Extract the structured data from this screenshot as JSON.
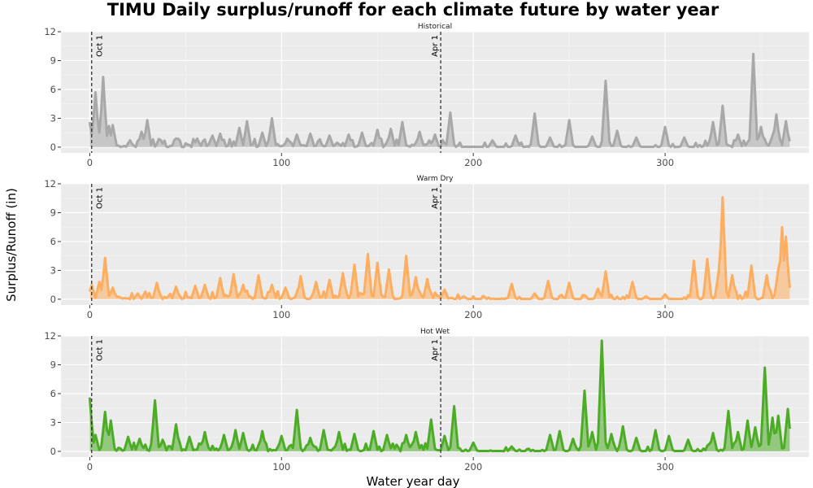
{
  "chart_data": {
    "type": "line",
    "title": "TIMU Daily surplus/runoff for each climate future by water year",
    "xlabel": "Water year day",
    "ylabel": "Surplus/Runoff (in)",
    "xlim": [
      -15,
      375
    ],
    "ylim": [
      -0.6,
      12
    ],
    "x_ticks": [
      0,
      100,
      200,
      300
    ],
    "y_ticks": [
      0,
      3,
      6,
      9,
      12
    ],
    "grid": true,
    "reference_lines": [
      {
        "x": 1,
        "label": "Oct 1"
      },
      {
        "x": 183,
        "label": "Apr 1"
      }
    ],
    "panels": [
      {
        "name": "Historical",
        "color": "#a8a8a8",
        "peaks": [
          [
            0,
            2.6
          ],
          [
            3,
            5.7
          ],
          [
            5,
            1.5
          ],
          [
            7,
            7.3
          ],
          [
            10,
            2.2
          ],
          [
            12,
            2.3
          ],
          [
            27,
            1.6
          ],
          [
            30,
            2.8
          ],
          [
            56,
            0.9
          ],
          [
            64,
            1.2
          ],
          [
            68,
            1.4
          ],
          [
            78,
            2.0
          ],
          [
            82,
            2.7
          ],
          [
            90,
            1.5
          ],
          [
            95,
            3.0
          ],
          [
            108,
            1.3
          ],
          [
            115,
            1.4
          ],
          [
            125,
            1.2
          ],
          [
            135,
            1.3
          ],
          [
            142,
            1.5
          ],
          [
            150,
            1.8
          ],
          [
            157,
            1.9
          ],
          [
            163,
            2.6
          ],
          [
            172,
            1.6
          ],
          [
            180,
            1.3
          ],
          [
            188,
            3.6
          ],
          [
            210,
            0.7
          ],
          [
            222,
            1.2
          ],
          [
            232,
            3.5
          ],
          [
            240,
            1.0
          ],
          [
            250,
            2.8
          ],
          [
            262,
            1.1
          ],
          [
            269,
            6.9
          ],
          [
            275,
            1.7
          ],
          [
            285,
            1.0
          ],
          [
            300,
            2.1
          ],
          [
            310,
            1.0
          ],
          [
            325,
            2.6
          ],
          [
            330,
            4.3
          ],
          [
            338,
            1.3
          ],
          [
            346,
            9.7
          ],
          [
            350,
            2.1
          ],
          [
            356,
            1.2
          ],
          [
            358,
            3.4
          ],
          [
            363,
            2.7
          ]
        ]
      },
      {
        "name": "Warm Dry",
        "color": "#fdae61",
        "peaks": [
          [
            1,
            1.5
          ],
          [
            5,
            1.8
          ],
          [
            8,
            4.3
          ],
          [
            12,
            1.2
          ],
          [
            25,
            0.6
          ],
          [
            35,
            1.7
          ],
          [
            45,
            1.3
          ],
          [
            55,
            1.4
          ],
          [
            60,
            1.5
          ],
          [
            68,
            2.2
          ],
          [
            75,
            2.6
          ],
          [
            80,
            1.5
          ],
          [
            88,
            2.5
          ],
          [
            95,
            1.5
          ],
          [
            102,
            1.2
          ],
          [
            110,
            2.4
          ],
          [
            118,
            1.8
          ],
          [
            125,
            2.0
          ],
          [
            132,
            2.7
          ],
          [
            138,
            3.6
          ],
          [
            145,
            4.7
          ],
          [
            150,
            3.8
          ],
          [
            156,
            3.1
          ],
          [
            165,
            4.5
          ],
          [
            170,
            2.3
          ],
          [
            176,
            2.1
          ],
          [
            185,
            1.0
          ],
          [
            195,
            0.3
          ],
          [
            220,
            1.6
          ],
          [
            232,
            0.6
          ],
          [
            239,
            1.9
          ],
          [
            250,
            1.7
          ],
          [
            265,
            1.1
          ],
          [
            269,
            2.9
          ],
          [
            283,
            1.8
          ],
          [
            290,
            0.3
          ],
          [
            300,
            0.5
          ],
          [
            315,
            4.0
          ],
          [
            322,
            4.2
          ],
          [
            328,
            3.0
          ],
          [
            330,
            10.6
          ],
          [
            335,
            2.5
          ],
          [
            345,
            3.5
          ],
          [
            353,
            2.5
          ],
          [
            359,
            3.1
          ],
          [
            361,
            7.5
          ],
          [
            363,
            6.5
          ],
          [
            365,
            1.2
          ]
        ]
      },
      {
        "name": "Hot Wet",
        "color": "#4dac26",
        "peaks": [
          [
            0,
            5.6
          ],
          [
            3,
            1.7
          ],
          [
            8,
            4.1
          ],
          [
            11,
            3.2
          ],
          [
            20,
            1.5
          ],
          [
            26,
            1.3
          ],
          [
            34,
            5.3
          ],
          [
            38,
            1.2
          ],
          [
            45,
            2.8
          ],
          [
            52,
            1.5
          ],
          [
            60,
            2.0
          ],
          [
            70,
            1.7
          ],
          [
            76,
            2.2
          ],
          [
            80,
            1.9
          ],
          [
            90,
            2.1
          ],
          [
            100,
            1.6
          ],
          [
            108,
            4.3
          ],
          [
            115,
            1.4
          ],
          [
            122,
            2.2
          ],
          [
            130,
            2.0
          ],
          [
            138,
            1.8
          ],
          [
            148,
            2.1
          ],
          [
            155,
            1.7
          ],
          [
            165,
            1.7
          ],
          [
            170,
            2.0
          ],
          [
            178,
            3.3
          ],
          [
            185,
            1.6
          ],
          [
            190,
            4.7
          ],
          [
            200,
            0.9
          ],
          [
            220,
            0.5
          ],
          [
            240,
            1.7
          ],
          [
            245,
            2.1
          ],
          [
            252,
            1.3
          ],
          [
            258,
            6.3
          ],
          [
            262,
            2.0
          ],
          [
            267,
            11.5
          ],
          [
            272,
            1.8
          ],
          [
            278,
            2.6
          ],
          [
            285,
            1.4
          ],
          [
            295,
            2.2
          ],
          [
            302,
            1.6
          ],
          [
            312,
            1.2
          ],
          [
            325,
            1.9
          ],
          [
            333,
            4.2
          ],
          [
            338,
            2.0
          ],
          [
            343,
            3.2
          ],
          [
            347,
            2.5
          ],
          [
            352,
            8.7
          ],
          [
            356,
            3.5
          ],
          [
            359,
            3.7
          ],
          [
            364,
            4.4
          ],
          [
            365,
            1.6
          ]
        ]
      }
    ]
  }
}
